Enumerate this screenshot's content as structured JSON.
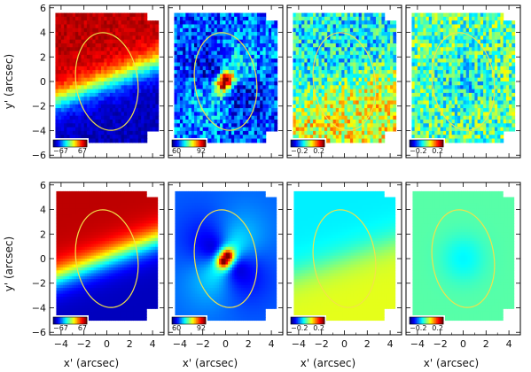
{
  "figure": {
    "ylabel": "y' (arcsec)",
    "xlabel": "x' (arcsec)",
    "ellipse_color": "#f2e24a"
  },
  "chart_data": {
    "type": "heatmap",
    "rows": 2,
    "cols": 4,
    "xlim": [
      -5,
      5
    ],
    "ylim": [
      -6.2,
      6.2
    ],
    "xticks": [
      -4,
      -2,
      0,
      2,
      4
    ],
    "yticks": [
      -6,
      -4,
      -2,
      0,
      2,
      4,
      6
    ],
    "xlabel": "x' (arcsec)",
    "ylabel": "y' (arcsec)",
    "ellipse": {
      "cx": 0,
      "cy": 0,
      "a": 2.7,
      "b": 4.0,
      "color": "#f2e24a"
    },
    "panels": [
      {
        "row": 0,
        "col": 0,
        "kind": "velocity",
        "noise": 0.08,
        "colorbar": {
          "min_label": "−67",
          "max_label": "67"
        }
      },
      {
        "row": 0,
        "col": 1,
        "kind": "dispersion",
        "noise": 0.3,
        "colorbar": {
          "min_label": "60",
          "max_label": "92"
        }
      },
      {
        "row": 0,
        "col": 2,
        "kind": "h3",
        "noise": 0.35,
        "colorbar": {
          "min_label": "−0.2",
          "max_label": "0.2"
        }
      },
      {
        "row": 0,
        "col": 3,
        "kind": "h4",
        "noise": 0.35,
        "colorbar": {
          "min_label": "−0.2",
          "max_label": "0.2"
        }
      },
      {
        "row": 1,
        "col": 0,
        "kind": "velocity",
        "noise": 0,
        "colorbar": {
          "min_label": "−67",
          "max_label": "67"
        }
      },
      {
        "row": 1,
        "col": 1,
        "kind": "dispersion",
        "noise": 0,
        "colorbar": {
          "min_label": "60",
          "max_label": "92"
        }
      },
      {
        "row": 1,
        "col": 2,
        "kind": "h3",
        "noise": 0,
        "colorbar": {
          "min_label": "−0.2",
          "max_label": "0.2"
        }
      },
      {
        "row": 1,
        "col": 3,
        "kind": "h4",
        "noise": 0,
        "colorbar": {
          "min_label": "−0.2",
          "max_label": "0.2"
        }
      }
    ]
  }
}
